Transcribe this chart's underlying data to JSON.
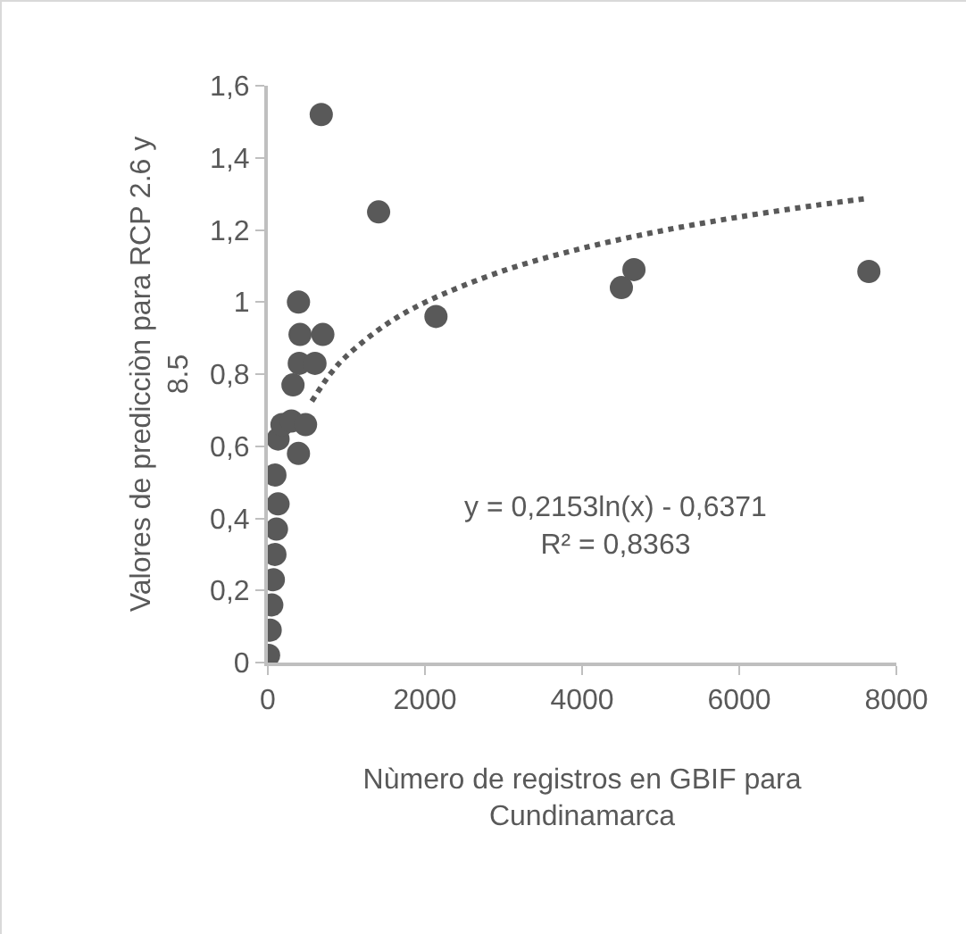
{
  "chart_data": {
    "type": "scatter",
    "xlabel": "Nùmero de registros en GBIF para\nCundinamarca",
    "ylabel": "Valores de predicciòn para RCP 2.6 y\n8.5",
    "annotations": [
      "y = 0,2153ln(x) - 0,6371\nR² = 0,8363"
    ],
    "xlim": [
      0,
      8000
    ],
    "xticks": [
      0,
      2000,
      4000,
      6000,
      8000
    ],
    "ylim": [
      0,
      1.6
    ],
    "yticks": [
      {
        "value": 0,
        "label": "0"
      },
      {
        "value": 0.2,
        "label": "0,2"
      },
      {
        "value": 0.4,
        "label": "0,4"
      },
      {
        "value": 0.6,
        "label": "0,6"
      },
      {
        "value": 0.8,
        "label": "0,8"
      },
      {
        "value": 1,
        "label": "1"
      },
      {
        "value": 1.2,
        "label": "1,2"
      },
      {
        "value": 1.4,
        "label": "1,4"
      },
      {
        "value": 1.6,
        "label": "1,6"
      }
    ],
    "grid": false,
    "marker": "circle",
    "series": [
      {
        "color": "#595959",
        "x": [
          10,
          30,
          50,
          70,
          90,
          110,
          130,
          90,
          130,
          180,
          300,
          480,
          390,
          320,
          400,
          600,
          390,
          410,
          700,
          680,
          1410,
          2140,
          4500,
          4660,
          7650
        ],
        "values": [
          0.02,
          0.09,
          0.16,
          0.23,
          0.3,
          0.37,
          0.44,
          0.52,
          0.62,
          0.66,
          0.67,
          0.66,
          0.58,
          0.77,
          0.83,
          0.83,
          1.0,
          0.91,
          0.91,
          1.52,
          1.25,
          0.96,
          1.04,
          1.09,
          1.085
        ]
      },
      {
        "type": "line",
        "line_style": "dotted",
        "marker": "none",
        "color": "#595959",
        "x": [
          560,
          800,
          1000,
          1500,
          2000,
          3000,
          4000,
          5000,
          6000,
          7000,
          7650
        ],
        "values": [
          0.725,
          0.802,
          0.85,
          0.937,
          0.999,
          1.087,
          1.149,
          1.197,
          1.236,
          1.269,
          1.288
        ]
      }
    ]
  }
}
